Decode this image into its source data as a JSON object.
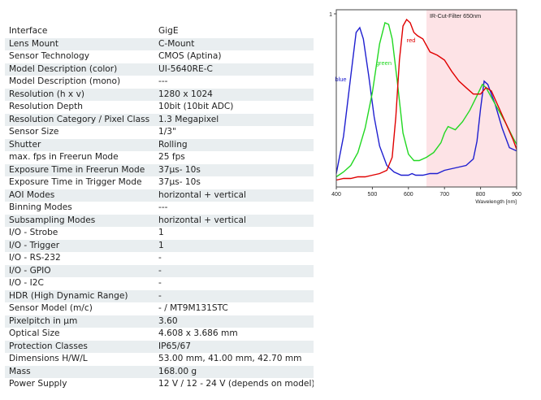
{
  "specs": [
    {
      "label": "Interface",
      "value": "GigE"
    },
    {
      "label": "Lens Mount",
      "value": "C-Mount"
    },
    {
      "label": "Sensor Technology",
      "value": "CMOS (Aptina)"
    },
    {
      "label": "Model Description (color)",
      "value": "UI-5640RE-C"
    },
    {
      "label": "Model Description (mono)",
      "value": "---"
    },
    {
      "label": "Resolution (h x v)",
      "value": "1280 x 1024"
    },
    {
      "label": "Resolution Depth",
      "value": "10bit (10bit ADC)"
    },
    {
      "label": "Resolution Category / Pixel Class",
      "value": "1.3 Megapixel"
    },
    {
      "label": "Sensor Size",
      "value": "1/3\""
    },
    {
      "label": "Shutter",
      "value": "Rolling"
    },
    {
      "label": "max. fps in Freerun Mode",
      "value": "25 fps"
    },
    {
      "label": "Exposure Time in Freerun Mode",
      "value": "37μs- 10s"
    },
    {
      "label": "Exposure Time in Trigger Mode",
      "value": "37μs- 10s"
    },
    {
      "label": "AOI Modes",
      "value": "horizontal + vertical"
    },
    {
      "label": "Binning Modes",
      "value": "---"
    },
    {
      "label": "Subsampling Modes",
      "value": "horizontal + vertical"
    },
    {
      "label": "I/O - Strobe",
      "value": "1"
    },
    {
      "label": "I/O - Trigger",
      "value": "1"
    },
    {
      "label": "I/O - RS-232",
      "value": "-"
    },
    {
      "label": "I/O - GPIO",
      "value": "-"
    },
    {
      "label": "I/O - I2C",
      "value": "-"
    },
    {
      "label": "HDR (High Dynamic Range)",
      "value": "-"
    },
    {
      "label": "Sensor Model (m/c)",
      "value": "- / MT9M131STC"
    },
    {
      "label": "Pixelpitch in μm",
      "value": "3.60"
    },
    {
      "label": "Optical Size",
      "value": "4.608 x 3.686 mm"
    },
    {
      "label": "Protection Classes",
      "value": "IP65/67"
    },
    {
      "label": "Dimensions H/W/L",
      "value": "53.00 mm, 41.00 mm, 42.70 mm"
    },
    {
      "label": "Mass",
      "value": "168.00 g"
    },
    {
      "label": "Power Supply",
      "value": "12 V / 12 - 24 V (depends on model)"
    }
  ],
  "chart_data": {
    "type": "line",
    "xlabel": "Wavelength [nm]",
    "xlim": [
      400,
      900
    ],
    "ylim": [
      0,
      1
    ],
    "x_ticks": [
      400,
      500,
      600,
      700,
      800,
      900
    ],
    "y_ticks": [
      1
    ],
    "shaded_region": {
      "from": 650,
      "to": 900,
      "label": "IR-Cut-Filter 650nm",
      "color": "#fde3e6"
    },
    "series": [
      {
        "name": "blue",
        "color": "#1f1fd0",
        "x": [
          400,
          420,
          440,
          455,
          465,
          475,
          490,
          505,
          520,
          540,
          560,
          580,
          600,
          610,
          620,
          640,
          660,
          680,
          700,
          720,
          740,
          760,
          780,
          790,
          800,
          810,
          820,
          840,
          860,
          880,
          900
        ],
        "y": [
          0.05,
          0.28,
          0.65,
          0.92,
          0.95,
          0.88,
          0.65,
          0.4,
          0.22,
          0.1,
          0.06,
          0.04,
          0.04,
          0.05,
          0.04,
          0.04,
          0.05,
          0.05,
          0.07,
          0.08,
          0.09,
          0.1,
          0.14,
          0.25,
          0.45,
          0.62,
          0.6,
          0.48,
          0.33,
          0.21,
          0.19
        ]
      },
      {
        "name": "green",
        "color": "#22d822",
        "x": [
          400,
          420,
          440,
          460,
          480,
          500,
          520,
          535,
          545,
          555,
          570,
          585,
          600,
          615,
          630,
          650,
          670,
          690,
          700,
          710,
          730,
          750,
          770,
          790,
          805,
          815,
          830,
          850,
          870,
          890,
          900
        ],
        "y": [
          0.03,
          0.06,
          0.1,
          0.18,
          0.33,
          0.55,
          0.85,
          0.98,
          0.97,
          0.88,
          0.6,
          0.3,
          0.17,
          0.13,
          0.13,
          0.15,
          0.18,
          0.24,
          0.3,
          0.34,
          0.32,
          0.37,
          0.44,
          0.53,
          0.6,
          0.58,
          0.52,
          0.44,
          0.36,
          0.27,
          0.23
        ]
      },
      {
        "name": "red",
        "color": "#e00000",
        "x": [
          400,
          420,
          440,
          460,
          480,
          500,
          520,
          540,
          555,
          565,
          575,
          585,
          595,
          605,
          615,
          625,
          640,
          660,
          680,
          700,
          720,
          740,
          760,
          780,
          800,
          815,
          830,
          850,
          870,
          890,
          900
        ],
        "y": [
          0.01,
          0.02,
          0.02,
          0.03,
          0.03,
          0.04,
          0.05,
          0.07,
          0.15,
          0.4,
          0.75,
          0.96,
          1.0,
          0.98,
          0.92,
          0.9,
          0.88,
          0.8,
          0.78,
          0.75,
          0.68,
          0.62,
          0.58,
          0.54,
          0.54,
          0.58,
          0.56,
          0.46,
          0.36,
          0.26,
          0.2
        ]
      }
    ]
  }
}
